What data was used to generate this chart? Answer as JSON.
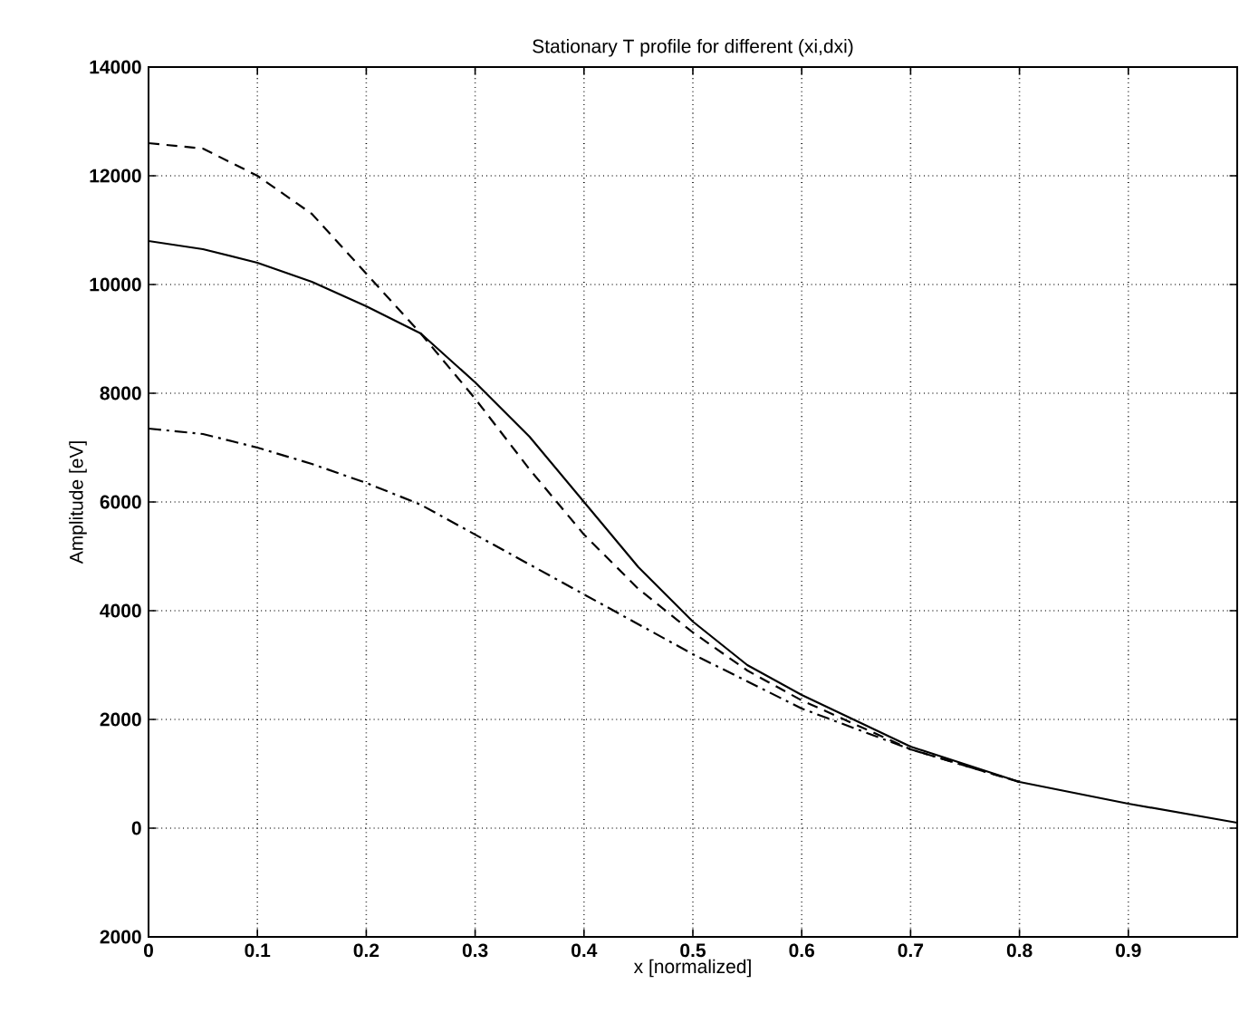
{
  "chart_data": {
    "type": "line",
    "title": "Stationary T profile for different (xi,dxi)",
    "xlabel": "x [normalized]",
    "ylabel": "Amplitude [eV]",
    "xlim": [
      0,
      1
    ],
    "xticks": [
      0,
      0.1,
      0.2,
      0.3,
      0.4,
      0.5,
      0.6,
      0.7,
      0.8,
      0.9,
      {
        "value": 1,
        "label": null
      }
    ],
    "ylim": [
      -2000,
      14000
    ],
    "yticks": [
      {
        "value": -2000,
        "label": "2000"
      },
      0,
      2000,
      4000,
      6000,
      8000,
      10000,
      12000,
      14000
    ],
    "grid": true,
    "series": [
      {
        "color": "#000000",
        "line_style": "solid",
        "x": [
          0,
          0.05,
          0.1,
          0.15,
          0.2,
          0.25,
          0.3,
          0.35,
          0.4,
          0.45,
          0.5,
          0.55,
          0.6,
          0.7,
          0.8,
          0.9,
          1.0
        ],
        "values": [
          10800,
          10650,
          10400,
          10050,
          9600,
          9100,
          8200,
          7200,
          6000,
          4800,
          3800,
          3000,
          2450,
          1500,
          850,
          450,
          100
        ]
      },
      {
        "color": "#000000",
        "line_style": "dashed",
        "x": [
          0,
          0.05,
          0.1,
          0.15,
          0.2,
          0.25,
          0.3,
          0.35,
          0.4,
          0.45,
          0.5,
          0.55,
          0.6,
          0.7,
          0.8
        ],
        "values": [
          12600,
          12500,
          12000,
          11300,
          10200,
          9100,
          7900,
          6600,
          5400,
          4400,
          3600,
          2900,
          2350,
          1450,
          850
        ]
      },
      {
        "color": "#000000",
        "line_style": "dashdot",
        "x": [
          0,
          0.05,
          0.1,
          0.15,
          0.2,
          0.25,
          0.3,
          0.35,
          0.4,
          0.5,
          0.6,
          0.7,
          0.8
        ],
        "values": [
          7350,
          7250,
          7000,
          6700,
          6350,
          5950,
          5400,
          4850,
          4300,
          3200,
          2200,
          1450,
          850
        ]
      }
    ]
  }
}
